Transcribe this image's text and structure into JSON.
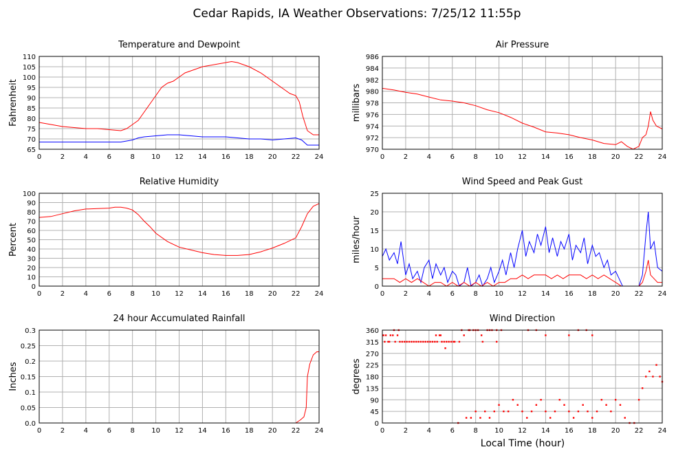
{
  "page_title": "Cedar Rapids, IA Weather Observations: 7/25/12 11:55p",
  "xlabel_bottom": "Local Time (hour)",
  "colors": {
    "series1": "#ff0000",
    "series2": "#0000ff",
    "grid": "#b0b0b0",
    "frame": "#000000"
  },
  "chart_data": [
    {
      "id": "temp",
      "type": "line",
      "title": "Temperature and Dewpoint",
      "ylabel": "Fahrenheit",
      "xlim": [
        0,
        24
      ],
      "ylim": [
        65,
        110
      ],
      "xticks": [
        0,
        2,
        4,
        6,
        8,
        10,
        12,
        14,
        16,
        18,
        20,
        22,
        24
      ],
      "yticks": [
        65,
        70,
        75,
        80,
        85,
        90,
        95,
        100,
        105,
        110
      ],
      "grid": true,
      "series": [
        {
          "color": "#ff0000",
          "x": [
            0,
            1,
            2,
            3,
            4,
            5,
            6,
            7,
            7.5,
            8,
            8.5,
            9,
            9.5,
            10,
            10.5,
            11,
            11.5,
            12,
            12.5,
            13,
            14,
            15,
            16,
            16.5,
            17,
            18,
            19,
            20,
            21,
            21.5,
            22,
            22.3,
            22.6,
            23,
            23.5,
            24
          ],
          "y": [
            78,
            77,
            76,
            75.5,
            75,
            75,
            74.5,
            74,
            75,
            77,
            79,
            83,
            87,
            91,
            95,
            97,
            98,
            100,
            102,
            103,
            105,
            106,
            107,
            107.5,
            107,
            105,
            102,
            98,
            94,
            92,
            91,
            88,
            81,
            74,
            72,
            72
          ]
        },
        {
          "color": "#0000ff",
          "x": [
            0,
            2,
            4,
            6,
            7,
            7.5,
            8,
            8.5,
            9,
            10,
            11,
            12,
            13,
            14,
            15,
            16,
            17,
            18,
            19,
            20,
            21,
            22,
            22.5,
            23,
            24
          ],
          "y": [
            68.5,
            68.5,
            68.5,
            68.5,
            68.5,
            69,
            69.5,
            70.5,
            71,
            71.5,
            72,
            72,
            71.5,
            71,
            71,
            71,
            70.5,
            70,
            70,
            69.5,
            70,
            70.5,
            69.5,
            67,
            67
          ]
        }
      ]
    },
    {
      "id": "pressure",
      "type": "line",
      "title": "Air Pressure",
      "ylabel": "millibars",
      "xlim": [
        0,
        24
      ],
      "ylim": [
        970,
        986
      ],
      "xticks": [
        0,
        2,
        4,
        6,
        8,
        10,
        12,
        14,
        16,
        18,
        20,
        22,
        24
      ],
      "yticks": [
        970,
        972,
        974,
        976,
        978,
        980,
        982,
        984,
        986
      ],
      "grid": true,
      "series": [
        {
          "color": "#ff0000",
          "x": [
            0,
            1,
            2,
            3,
            4,
            5,
            6,
            7,
            8,
            9,
            10,
            11,
            12,
            13,
            14,
            15,
            16,
            17,
            18,
            19,
            20,
            20.5,
            21,
            21.5,
            22,
            22.3,
            22.6,
            22.8,
            23,
            23.2,
            23.5,
            24
          ],
          "y": [
            980.5,
            980.2,
            979.8,
            979.5,
            979,
            978.5,
            978.3,
            978,
            977.5,
            976.8,
            976.3,
            975.5,
            974.5,
            973.8,
            973,
            972.8,
            972.5,
            972,
            971.6,
            971,
            970.8,
            971.3,
            970.5,
            970,
            970.5,
            972,
            972.5,
            974,
            976.5,
            975,
            974,
            973.5
          ]
        }
      ]
    },
    {
      "id": "humidity",
      "type": "line",
      "title": "Relative Humidity",
      "ylabel": "Percent",
      "xlim": [
        0,
        24
      ],
      "ylim": [
        0,
        100
      ],
      "xticks": [
        0,
        2,
        4,
        6,
        8,
        10,
        12,
        14,
        16,
        18,
        20,
        22,
        24
      ],
      "yticks": [
        0,
        10,
        20,
        30,
        40,
        50,
        60,
        70,
        80,
        90,
        100
      ],
      "grid": true,
      "series": [
        {
          "color": "#ff0000",
          "x": [
            0,
            1,
            2,
            3,
            4,
            5,
            6,
            6.5,
            7,
            7.5,
            8,
            8.5,
            9,
            9.5,
            10,
            11,
            12,
            13,
            14,
            15,
            16,
            17,
            18,
            19,
            20,
            21,
            22,
            22.5,
            23,
            23.5,
            24
          ],
          "y": [
            74,
            75,
            78,
            81,
            83,
            83.5,
            84,
            85,
            85,
            84,
            82,
            77,
            70,
            64,
            57,
            48,
            42,
            39,
            36,
            34,
            33,
            33,
            34,
            37,
            41,
            46,
            52,
            64,
            78,
            86,
            89
          ]
        }
      ]
    },
    {
      "id": "wind",
      "type": "line",
      "title": "Wind Speed and Peak Gust",
      "ylabel": "miles/hour",
      "xlim": [
        0,
        24
      ],
      "ylim": [
        0,
        25
      ],
      "xticks": [
        0,
        2,
        4,
        6,
        8,
        10,
        12,
        14,
        16,
        18,
        20,
        22,
        24
      ],
      "yticks": [
        0,
        5,
        10,
        15,
        20,
        25
      ],
      "grid": true,
      "series": [
        {
          "color": "#0000ff",
          "x": [
            0,
            0.3,
            0.6,
            1,
            1.3,
            1.6,
            2,
            2.3,
            2.6,
            3,
            3.3,
            3.6,
            4,
            4.3,
            4.6,
            5,
            5.3,
            5.6,
            6,
            6.3,
            6.6,
            7,
            7.3,
            7.6,
            8,
            8.3,
            8.6,
            9,
            9.3,
            9.6,
            10,
            10.3,
            10.6,
            11,
            11.3,
            11.6,
            12,
            12.3,
            12.6,
            13,
            13.3,
            13.6,
            14,
            14.3,
            14.6,
            15,
            15.3,
            15.6,
            16,
            16.3,
            16.6,
            17,
            17.3,
            17.6,
            18,
            18.3,
            18.6,
            19,
            19.3,
            19.6,
            20,
            20.3,
            20.6,
            21,
            21.3,
            21.6,
            22,
            22.3,
            22.6,
            22.8,
            23,
            23.3,
            23.6,
            24
          ],
          "y": [
            8,
            10,
            7,
            9,
            6,
            12,
            3,
            6,
            2,
            4,
            1,
            5,
            7,
            2,
            6,
            3,
            5,
            1,
            4,
            3,
            0,
            1,
            5,
            0,
            1,
            3,
            0,
            2,
            5,
            1,
            4,
            7,
            3,
            9,
            5,
            10,
            15,
            8,
            12,
            9,
            14,
            11,
            16,
            9,
            13,
            8,
            12,
            10,
            14,
            7,
            11,
            9,
            13,
            6,
            11,
            8,
            9,
            5,
            7,
            3,
            4,
            2,
            0,
            0,
            0,
            0,
            0,
            3,
            14,
            20,
            10,
            12,
            5,
            4
          ]
        },
        {
          "color": "#ff0000",
          "x": [
            0,
            0.5,
            1,
            1.5,
            2,
            2.5,
            3,
            3.5,
            4,
            4.5,
            5,
            5.5,
            6,
            6.5,
            7,
            7.5,
            8,
            8.5,
            9,
            9.5,
            10,
            10.5,
            11,
            11.5,
            12,
            12.5,
            13,
            13.5,
            14,
            14.5,
            15,
            15.5,
            16,
            16.5,
            17,
            17.5,
            18,
            18.5,
            19,
            19.5,
            20,
            20.5,
            21,
            21.5,
            22,
            22.3,
            22.6,
            22.8,
            23,
            23.3,
            23.6,
            24
          ],
          "y": [
            2,
            2,
            2,
            1,
            2,
            1,
            2,
            1,
            0,
            1,
            1,
            0,
            1,
            0,
            1,
            0,
            1,
            0,
            1,
            0,
            1,
            1,
            2,
            2,
            3,
            2,
            3,
            3,
            3,
            2,
            3,
            2,
            3,
            3,
            3,
            2,
            3,
            2,
            3,
            2,
            1,
            0,
            0,
            0,
            0,
            1,
            4,
            7,
            3,
            2,
            1,
            1
          ]
        }
      ]
    },
    {
      "id": "rain",
      "type": "line",
      "title": "24 hour Accumulated Rainfall",
      "ylabel": "Inches",
      "xlim": [
        0,
        24
      ],
      "ylim": [
        0,
        0.3
      ],
      "xticks": [
        0,
        2,
        4,
        6,
        8,
        10,
        12,
        14,
        16,
        18,
        20,
        22,
        24
      ],
      "yticks": [
        0,
        0.05,
        0.1,
        0.15,
        0.2,
        0.25,
        0.3
      ],
      "ytick_labels": [
        "0.0",
        "0.05",
        "0.1",
        "0.15",
        "0.2",
        "0.25",
        "0.3"
      ],
      "grid": true,
      "series": [
        {
          "color": "#ff0000",
          "x": [
            0,
            22,
            22.4,
            22.7,
            22.9,
            23.0,
            23.2,
            23.5,
            23.8,
            24
          ],
          "y": [
            0,
            0,
            0.01,
            0.02,
            0.05,
            0.15,
            0.19,
            0.22,
            0.23,
            0.23
          ]
        }
      ]
    },
    {
      "id": "direction",
      "type": "scatter",
      "title": "Wind Direction",
      "ylabel": "degrees",
      "xlabel": "Local Time (hour)",
      "xlim": [
        0,
        24
      ],
      "ylim": [
        0,
        360
      ],
      "xticks": [
        0,
        2,
        4,
        6,
        8,
        10,
        12,
        14,
        16,
        18,
        20,
        22,
        24
      ],
      "yticks": [
        0,
        45,
        90,
        135,
        180,
        225,
        270,
        315,
        360
      ],
      "grid": true,
      "series": [
        {
          "color": "#ff0000",
          "x": [
            0.1,
            0.3,
            0.5,
            0.7,
            0.9,
            1.1,
            1.3,
            1.5,
            1.7,
            1.9,
            2.1,
            2.3,
            2.5,
            2.7,
            2.9,
            3.1,
            3.3,
            3.5,
            3.7,
            3.9,
            4.1,
            4.3,
            4.5,
            4.7,
            4.9,
            5.1,
            5.3,
            5.5,
            5.7,
            5.9,
            6.2,
            6.6,
            7.0,
            7.4,
            7.8,
            8.2,
            8.6,
            9.0,
            9.4,
            9.8,
            10.2,
            0.2,
            0.6,
            1.0,
            1.4,
            4.6,
            5.0,
            5.4,
            6.1,
            6.8,
            7.5,
            8.0,
            8.5,
            9.2,
            9.8,
            12.5,
            13.2,
            14.0,
            16.0,
            16.8,
            17.5,
            18.0,
            6.5,
            7.2,
            7.6,
            8.0,
            8.4,
            8.8,
            9.2,
            9.6,
            10.0,
            10.4,
            10.8,
            11.2,
            11.6,
            12.0,
            12.4,
            12.8,
            13.2,
            13.6,
            14.0,
            14.4,
            14.8,
            15.2,
            15.6,
            16.0,
            16.4,
            16.8,
            17.2,
            17.6,
            18.0,
            18.4,
            18.8,
            19.2,
            19.6,
            20.0,
            20.4,
            20.8,
            21.2,
            21.6,
            22.0,
            22.3,
            22.6,
            22.9,
            23.2,
            23.5,
            23.8,
            24.0
          ],
          "y": [
            340,
            340,
            315,
            340,
            340,
            315,
            340,
            315,
            315,
            315,
            315,
            315,
            315,
            315,
            315,
            315,
            315,
            315,
            315,
            315,
            315,
            315,
            315,
            315,
            340,
            315,
            315,
            315,
            315,
            315,
            315,
            315,
            340,
            360,
            360,
            360,
            315,
            360,
            360,
            360,
            360,
            315,
            315,
            360,
            360,
            340,
            340,
            290,
            315,
            360,
            360,
            360,
            340,
            360,
            315,
            360,
            360,
            340,
            340,
            360,
            360,
            340,
            0,
            20,
            20,
            45,
            20,
            45,
            20,
            45,
            70,
            45,
            45,
            90,
            70,
            45,
            20,
            45,
            70,
            90,
            45,
            20,
            45,
            90,
            70,
            45,
            20,
            45,
            70,
            45,
            20,
            45,
            90,
            70,
            45,
            90,
            70,
            20,
            0,
            0,
            90,
            135,
            180,
            200,
            180,
            225,
            180,
            160
          ]
        }
      ]
    }
  ]
}
